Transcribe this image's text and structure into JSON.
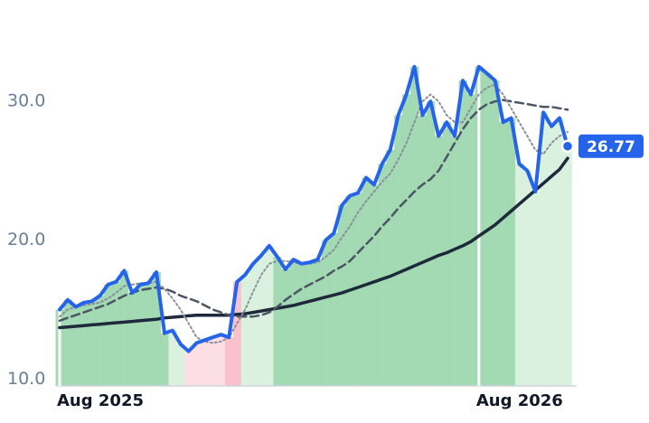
{
  "chart_data": {
    "type": "line",
    "categories": [
      "Aug 2025",
      null,
      null,
      null,
      null,
      null,
      null,
      null,
      null,
      null,
      null,
      null,
      null,
      null,
      null,
      null,
      null,
      null,
      null,
      null,
      null,
      null,
      null,
      null,
      null,
      null,
      null,
      null,
      null,
      null,
      null,
      null,
      null,
      null,
      null,
      null,
      null,
      null,
      null,
      null,
      null,
      null,
      null,
      null,
      null,
      null,
      null,
      null,
      null,
      null,
      null,
      null,
      "Aug 2026",
      null,
      null,
      null,
      null,
      null,
      null,
      null,
      null,
      null,
      null,
      null
    ],
    "ylim": [
      9.5,
      36
    ],
    "yticks": [
      {
        "value": 10,
        "label": "10.0"
      },
      {
        "value": 20,
        "label": "20.0"
      },
      {
        "value": 30,
        "label": "30.0"
      }
    ],
    "area_colors": [
      "#93d3a6",
      "#93d3a6",
      "#93d3a6",
      "#93d3a6",
      "#93d3a6",
      "#93d3a6",
      "#93d3a6",
      "#93d3a6",
      "#93d3a6",
      "#93d3a6",
      "#93d3a6",
      "#93d3a6",
      "#93d3a6",
      "#93d3a6",
      "#d4eedb",
      "#d4eedb",
      "#fbd9e0",
      "#fbd9e0",
      "#fbd9e0",
      "#fbd9e0",
      "#fbd9e0",
      "#f7b6c3",
      "#f7b6c3",
      "#d4eedb",
      "#d4eedb",
      "#d4eedb",
      "#d4eedb",
      "#93d3a6",
      "#93d3a6",
      "#93d3a6",
      "#93d3a6",
      "#93d3a6",
      "#93d3a6",
      "#93d3a6",
      "#93d3a6",
      "#93d3a6",
      "#93d3a6",
      "#93d3a6",
      "#93d3a6",
      "#93d3a6",
      "#93d3a6",
      "#93d3a6",
      "#93d3a6",
      "#93d3a6",
      "#93d3a6",
      "#93d3a6",
      "#93d3a6",
      "#93d3a6",
      "#93d3a6",
      "#93d3a6",
      "#93d3a6",
      "#93d3a6",
      "#93d3a6",
      "#93d3a6",
      "#93d3a6",
      "#93d3a6",
      "#93d3a6",
      "#d4eedb",
      "#d4eedb",
      "#d4eedb",
      "#d4eedb",
      "#d4eedb",
      "#d4eedb",
      "#d4eedb"
    ],
    "series": [
      {
        "color": "#2563eb",
        "style": "solid",
        "width": 4,
        "values": [
          15,
          15.7,
          15.2,
          15.5,
          15.6,
          16,
          16.8,
          17,
          17.8,
          16.2,
          16.8,
          16.9,
          17.7,
          13.3,
          13.5,
          12.5,
          12,
          12.6,
          12.8,
          13,
          13.2,
          13,
          17,
          17.5,
          18.3,
          18.9,
          19.6,
          18.8,
          17.9,
          18.6,
          18.3,
          18.4,
          18.6,
          20,
          20.5,
          22.5,
          23.2,
          23.4,
          24.5,
          24,
          25.5,
          26.5,
          29,
          30.5,
          32.5,
          29,
          30,
          27.5,
          28.5,
          27.5,
          31.5,
          30.5,
          32.5,
          32,
          31.5,
          28.5,
          28.8,
          25.5,
          25,
          23.5,
          29.2,
          28.2,
          28.8,
          26.77
        ],
        "value_labels": [
          null,
          null,
          null,
          null,
          null,
          null,
          null,
          null,
          null,
          null,
          null,
          null,
          null,
          null,
          null,
          null,
          null,
          null,
          null,
          null,
          null,
          null,
          null,
          null,
          null,
          null,
          null,
          null,
          null,
          null,
          null,
          null,
          null,
          null,
          null,
          null,
          null,
          null,
          null,
          null,
          null,
          null,
          null,
          null,
          null,
          null,
          null,
          null,
          null,
          null,
          null,
          null,
          null,
          null,
          null,
          null,
          null,
          null,
          null,
          null,
          null,
          null,
          null,
          "26.77"
        ]
      },
      {
        "color": "#8a8f99",
        "style": "dotted",
        "width": 2,
        "values": [
          14.5,
          15,
          15.2,
          15.3,
          15.4,
          15.5,
          15.8,
          16.2,
          16.7,
          16.8,
          16.9,
          16.9,
          17,
          16.5,
          15.8,
          15,
          14,
          13,
          12.7,
          12.6,
          12.7,
          13,
          14,
          15,
          16.3,
          17.5,
          18.3,
          18.5,
          18.5,
          18.4,
          18.3,
          18.3,
          18.4,
          18.8,
          19.3,
          20.2,
          21,
          22,
          22.8,
          23.5,
          24.2,
          24.8,
          25.8,
          27,
          28.5,
          30,
          30.5,
          30,
          29,
          28.5,
          28.5,
          29.5,
          30.5,
          31,
          31.2,
          30.5,
          29.5,
          28.5,
          27.5,
          26.5,
          26.2,
          27,
          27.5,
          27.8
        ]
      },
      {
        "color": "#4b5563",
        "style": "dashed",
        "width": 2.5,
        "values": [
          14.2,
          14.4,
          14.6,
          14.8,
          15,
          15.2,
          15.4,
          15.7,
          16,
          16.2,
          16.4,
          16.5,
          16.6,
          16.5,
          16.3,
          16,
          15.8,
          15.6,
          15.3,
          15,
          14.8,
          14.6,
          14.5,
          14.5,
          14.5,
          14.6,
          14.8,
          15.2,
          15.7,
          16.1,
          16.5,
          16.8,
          17.1,
          17.4,
          17.8,
          18.1,
          18.5,
          19.1,
          19.7,
          20.3,
          21,
          21.6,
          22.3,
          22.9,
          23.5,
          24,
          24.4,
          25,
          26,
          27,
          28,
          28.8,
          29.4,
          29.8,
          30,
          30.1,
          30,
          29.9,
          29.8,
          29.7,
          29.6,
          29.6,
          29.5,
          29.4
        ]
      },
      {
        "color": "#1e293b",
        "style": "solid",
        "width": 3.5,
        "values": [
          13.7,
          13.75,
          13.8,
          13.85,
          13.9,
          13.95,
          14,
          14.05,
          14.1,
          14.15,
          14.2,
          14.25,
          14.3,
          14.4,
          14.45,
          14.5,
          14.55,
          14.6,
          14.6,
          14.6,
          14.6,
          14.6,
          14.65,
          14.7,
          14.8,
          14.9,
          15,
          15.1,
          15.2,
          15.3,
          15.45,
          15.6,
          15.75,
          15.9,
          16.05,
          16.2,
          16.4,
          16.6,
          16.8,
          17,
          17.2,
          17.4,
          17.65,
          17.9,
          18.15,
          18.4,
          18.65,
          18.9,
          19.1,
          19.35,
          19.6,
          19.9,
          20.3,
          20.7,
          21.1,
          21.6,
          22.1,
          22.6,
          23.1,
          23.6,
          24.1,
          24.6,
          25.1,
          25.9
        ]
      }
    ]
  }
}
